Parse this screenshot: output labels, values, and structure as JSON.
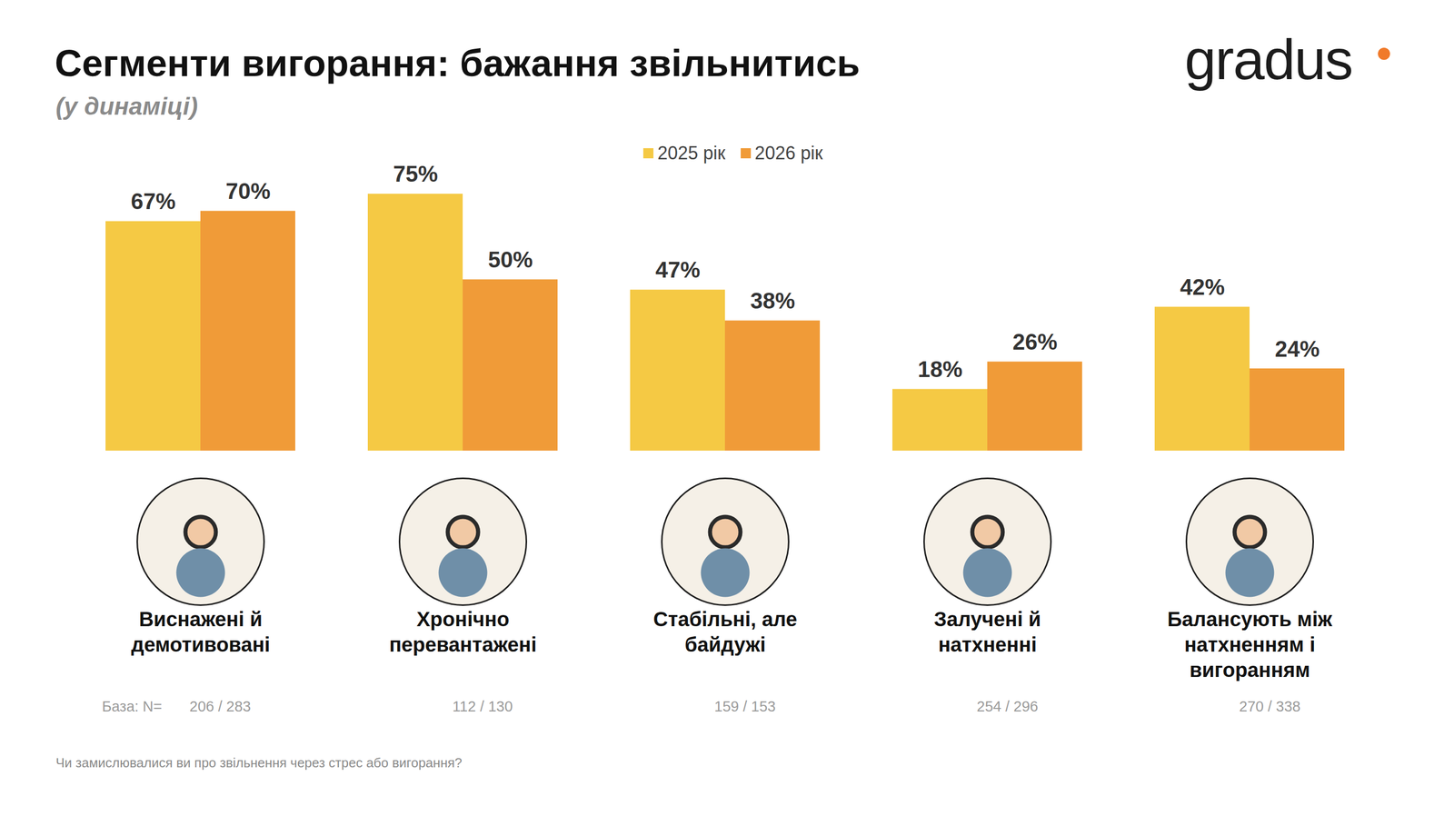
{
  "chart_data": {
    "type": "bar",
    "title": "Сегменти вигорання: бажання звільнитись",
    "subtitle": "(у динаміці)",
    "brand": "gradus",
    "categories": [
      "Виснажені й демотивовані",
      "Хронічно перевантажені",
      "Стабільні, але байдужі",
      "Залучені й натхненні",
      "Балансують між натхненням і вигоранням"
    ],
    "series": [
      {
        "name": "2025 рік",
        "color": "#f5c944",
        "values": [
          67,
          75,
          47,
          18,
          42
        ],
        "value_labels": [
          "67%",
          "75%",
          "47%",
          "18%",
          "42%"
        ]
      },
      {
        "name": "2026 рік",
        "color": "#f09b38",
        "values": [
          70,
          50,
          38,
          26,
          24
        ],
        "value_labels": [
          "70%",
          "50%",
          "38%",
          "26%",
          "24%"
        ]
      }
    ],
    "ylim": [
      0,
      80
    ],
    "yticks": [],
    "grid": false,
    "legend": "top",
    "data_labels": true,
    "tick_labels": "x",
    "base": {
      "label": "База: N=",
      "values": [
        "206 / 283",
        "112 / 130",
        "159 / 153",
        "254 / 296",
        "270 / 338"
      ]
    },
    "question": "Чи замислювалися ви про звільнення через стрес або вигорання?"
  }
}
